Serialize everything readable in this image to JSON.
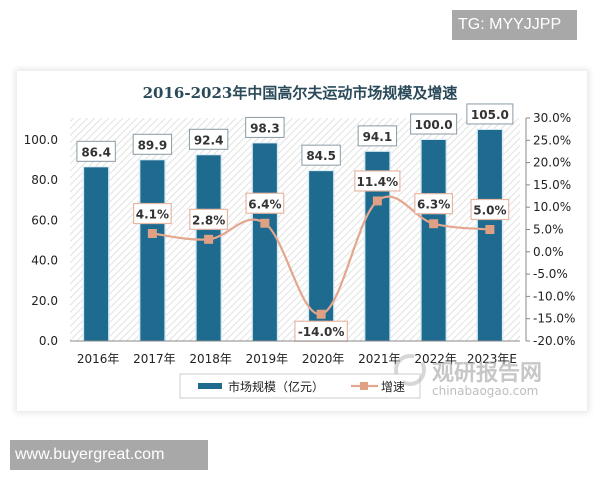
{
  "watermarks": {
    "top_right": "TG: MYYJJPP",
    "bottom_left": "www.buyergreat.com",
    "chart_brand_cn": "观研报告网",
    "chart_brand_url": "chinabaogao.com"
  },
  "colors": {
    "bar": "#1f6a8f",
    "line": "#e3a78e",
    "marker": "#e0a084",
    "title": "#2a4a5a",
    "hatch": "#d4d4d4"
  },
  "chart_data": {
    "type": "bar",
    "title": "2016-2023年中国高尔夫运动市场规模及增速",
    "categories": [
      "2016年",
      "2017年",
      "2018年",
      "2019年",
      "2020年",
      "2021年",
      "2022年",
      "2023年E"
    ],
    "series": [
      {
        "name": "市场规模（亿元）",
        "type": "bar",
        "axis": "left",
        "values": [
          86.4,
          89.9,
          92.4,
          98.3,
          84.5,
          94.1,
          100.0,
          105.0
        ],
        "labels": [
          "86.4",
          "89.9",
          "92.4",
          "98.3",
          "84.5",
          "94.1",
          "100.0",
          "105.0"
        ]
      },
      {
        "name": "增速",
        "type": "line",
        "axis": "right",
        "values": [
          null,
          4.1,
          2.8,
          6.4,
          -14.0,
          11.4,
          6.3,
          5.0
        ],
        "labels": [
          "",
          "4.1%",
          "2.8%",
          "6.4%",
          "-14.0%",
          "11.4%",
          "6.3%",
          "5.0%"
        ]
      }
    ],
    "left_axis": {
      "ylim": [
        0,
        100
      ],
      "ticks": [
        "0.0",
        "20.0",
        "40.0",
        "60.0",
        "80.0",
        "100.0"
      ]
    },
    "right_axis": {
      "ylim": [
        -20,
        30
      ],
      "ticks": [
        "-20.0%",
        "-15.0%",
        "-10.0%",
        "-5.0%",
        "0.0%",
        "5.0%",
        "10.0%",
        "15.0%",
        "20.0%",
        "25.0%",
        "30.0%"
      ]
    },
    "xlabel": "",
    "ylabel": "",
    "legend": {
      "position": "bottom",
      "entries": [
        "市场规模（亿元）",
        "增速"
      ]
    },
    "grid": false
  }
}
